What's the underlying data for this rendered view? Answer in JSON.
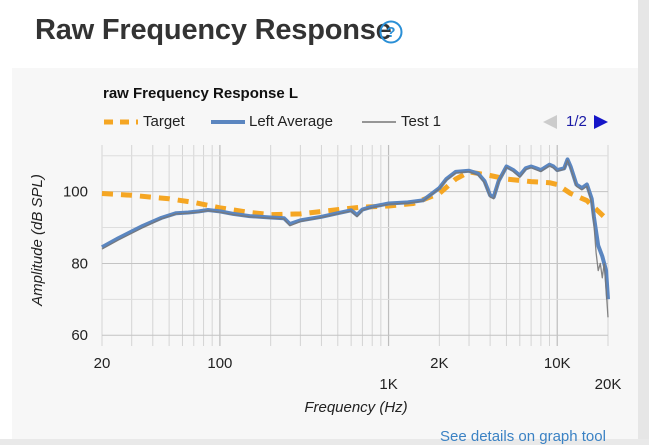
{
  "section": {
    "title": "Raw Frequency Response",
    "help_icon": "question-circle-icon",
    "accent_color": "#2a8fd6"
  },
  "legend": {
    "target": "Target",
    "left_average": "Left Average",
    "test1": "Test 1"
  },
  "pager": {
    "text": "1/2",
    "prev_icon": "triangle-left-icon",
    "next_icon": "triangle-right-icon"
  },
  "footer": {
    "link": "See details on graph tool"
  },
  "chart_data": {
    "type": "line",
    "title": "raw Frequency Response L",
    "xlabel": "Frequency (Hz)",
    "ylabel": "Amplitude (dB SPL)",
    "xscale": "log",
    "xlim": [
      20,
      20000
    ],
    "ylim": [
      57,
      113
    ],
    "grid": true,
    "legend_position": "top",
    "x_ticks_upper": [
      {
        "value": 20,
        "label": "20"
      },
      {
        "value": 100,
        "label": "100"
      },
      {
        "value": 2000,
        "label": "2K"
      },
      {
        "value": 10000,
        "label": "10K"
      }
    ],
    "x_ticks_lower": [
      {
        "value": 1000,
        "label": "1K"
      },
      {
        "value": 20000,
        "label": "20K"
      }
    ],
    "y_ticks": [
      {
        "value": 60,
        "label": "60"
      },
      {
        "value": 80,
        "label": "80"
      },
      {
        "value": 100,
        "label": "100"
      }
    ],
    "series": [
      {
        "name": "Target",
        "color": "#f5a623",
        "style": "dashed",
        "points": [
          [
            20,
            99.5
          ],
          [
            30,
            99
          ],
          [
            50,
            98
          ],
          [
            70,
            97
          ],
          [
            100,
            95.5
          ],
          [
            150,
            94.2
          ],
          [
            200,
            93.6
          ],
          [
            300,
            93.8
          ],
          [
            500,
            95
          ],
          [
            700,
            95.7
          ],
          [
            1000,
            96
          ],
          [
            1400,
            96.7
          ],
          [
            2000,
            99.5
          ],
          [
            2500,
            103.5
          ],
          [
            3000,
            105.5
          ],
          [
            4000,
            104.5
          ],
          [
            5000,
            103.5
          ],
          [
            7000,
            102.8
          ],
          [
            9000,
            102.5
          ],
          [
            10000,
            102
          ],
          [
            12000,
            99.5
          ],
          [
            15000,
            97.5
          ],
          [
            20000,
            92
          ]
        ]
      },
      {
        "name": "Left Average",
        "color": "#5b86c0",
        "style": "solid",
        "points": [
          [
            20,
            84.5
          ],
          [
            25,
            87
          ],
          [
            35,
            90.5
          ],
          [
            45,
            92.7
          ],
          [
            55,
            94
          ],
          [
            65,
            94.2
          ],
          [
            75,
            94.5
          ],
          [
            85,
            94.9
          ],
          [
            100,
            94.5
          ],
          [
            120,
            93.8
          ],
          [
            150,
            93.2
          ],
          [
            200,
            92.8
          ],
          [
            240,
            92.6
          ],
          [
            260,
            91
          ],
          [
            300,
            92
          ],
          [
            400,
            93
          ],
          [
            500,
            94
          ],
          [
            600,
            94.8
          ],
          [
            650,
            93.5
          ],
          [
            700,
            95
          ],
          [
            800,
            95.8
          ],
          [
            1000,
            96.7
          ],
          [
            1300,
            97
          ],
          [
            1600,
            97.6
          ],
          [
            2000,
            101
          ],
          [
            2200,
            103.5
          ],
          [
            2500,
            105.5
          ],
          [
            3000,
            105.8
          ],
          [
            3400,
            105
          ],
          [
            3700,
            103
          ],
          [
            4000,
            99
          ],
          [
            4200,
            98.5
          ],
          [
            4500,
            103
          ],
          [
            5000,
            107
          ],
          [
            5500,
            106
          ],
          [
            6000,
            104.5
          ],
          [
            6500,
            106.5
          ],
          [
            7000,
            107
          ],
          [
            7500,
            106.5
          ],
          [
            8000,
            106
          ],
          [
            9000,
            107.5
          ],
          [
            9500,
            107
          ],
          [
            10000,
            106
          ],
          [
            11000,
            106.5
          ],
          [
            11500,
            109
          ],
          [
            12000,
            107
          ],
          [
            13000,
            102
          ],
          [
            14000,
            101
          ],
          [
            15000,
            102
          ],
          [
            16000,
            98
          ],
          [
            16500,
            93
          ],
          [
            17500,
            85
          ],
          [
            18500,
            82
          ],
          [
            19500,
            78
          ],
          [
            20000,
            70
          ]
        ]
      },
      {
        "name": "Test 1",
        "color": "#777777",
        "style": "thin",
        "points": [
          [
            20,
            84
          ],
          [
            25,
            86.5
          ],
          [
            35,
            90
          ],
          [
            45,
            92.4
          ],
          [
            55,
            93.8
          ],
          [
            65,
            94
          ],
          [
            75,
            94.3
          ],
          [
            85,
            94.7
          ],
          [
            100,
            94.3
          ],
          [
            120,
            93.6
          ],
          [
            150,
            93
          ],
          [
            200,
            92.6
          ],
          [
            240,
            92.4
          ],
          [
            260,
            90.5
          ],
          [
            300,
            91.7
          ],
          [
            400,
            92.8
          ],
          [
            500,
            93.8
          ],
          [
            600,
            94.6
          ],
          [
            650,
            93
          ],
          [
            700,
            94.8
          ],
          [
            800,
            95.6
          ],
          [
            1000,
            96.5
          ],
          [
            1300,
            96.8
          ],
          [
            1600,
            97.4
          ],
          [
            2000,
            100.8
          ],
          [
            2200,
            103.2
          ],
          [
            2500,
            105.2
          ],
          [
            3000,
            105.6
          ],
          [
            3400,
            104.6
          ],
          [
            3700,
            102.5
          ],
          [
            4000,
            98.5
          ],
          [
            4200,
            98
          ],
          [
            4500,
            102.8
          ],
          [
            5000,
            106.8
          ],
          [
            5500,
            105.6
          ],
          [
            6000,
            104
          ],
          [
            6500,
            106.2
          ],
          [
            7000,
            106.7
          ],
          [
            7500,
            106.1
          ],
          [
            8000,
            105.6
          ],
          [
            9000,
            107.2
          ],
          [
            9500,
            106.6
          ],
          [
            10000,
            105.7
          ],
          [
            11000,
            106.2
          ],
          [
            11500,
            108.7
          ],
          [
            12000,
            106.5
          ],
          [
            13000,
            101.5
          ],
          [
            14000,
            100.5
          ],
          [
            15000,
            101.5
          ],
          [
            16000,
            97
          ],
          [
            16500,
            91
          ],
          [
            17000,
            83
          ],
          [
            17500,
            78
          ],
          [
            18000,
            80
          ],
          [
            18500,
            76
          ],
          [
            19000,
            80
          ],
          [
            19500,
            73
          ],
          [
            20000,
            65
          ]
        ]
      }
    ]
  }
}
